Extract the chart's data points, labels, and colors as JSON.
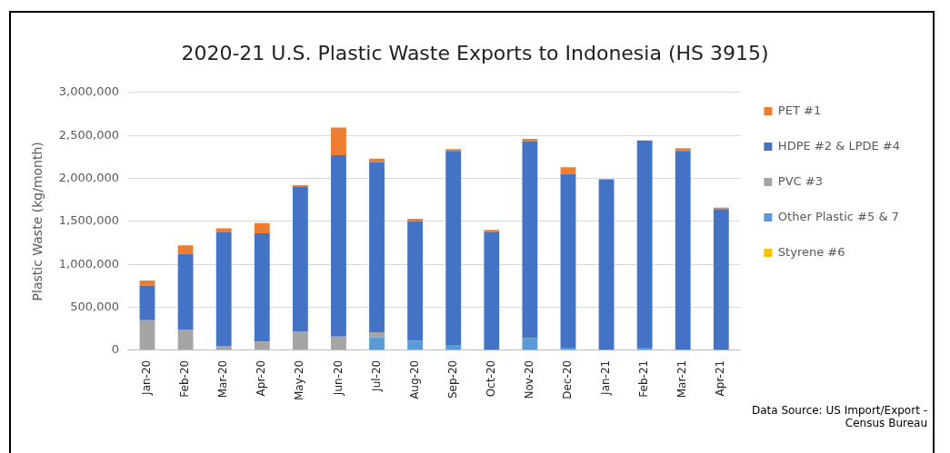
{
  "chart_data": {
    "type": "bar",
    "title": "2020-21 U.S. Plastic Waste Exports to Indonesia (HS 3915)",
    "ylabel": "Plastic Waste (kg/month)",
    "categories": [
      "Jan-20",
      "Feb-20",
      "Mar-20",
      "Apr-20",
      "May-20",
      "Jun-20",
      "Jul-20",
      "Aug-20",
      "Sep-20",
      "Oct-20",
      "Nov-20",
      "Dec-20",
      "Jan-21",
      "Feb-21",
      "Mar-21",
      "Apr-21"
    ],
    "stacked": true,
    "series": [
      {
        "name": "Styrene #6",
        "color": "#ffc000",
        "values": [
          0,
          0,
          0,
          0,
          0,
          0,
          0,
          0,
          0,
          0,
          0,
          0,
          0,
          0,
          0,
          0
        ]
      },
      {
        "name": "Other Plastic #5 & 7",
        "color": "#5b9bd5",
        "values": [
          0,
          0,
          0,
          0,
          0,
          0,
          150000,
          110000,
          60000,
          null,
          140000,
          30000,
          0,
          30000,
          0,
          0
        ]
      },
      {
        "name": "PVC #3",
        "color": "#a5a5a5",
        "values": [
          350000,
          240000,
          50000,
          100000,
          220000,
          160000,
          60000,
          0,
          0,
          0,
          0,
          0,
          0,
          0,
          0,
          0
        ]
      },
      {
        "name": "HDPE #2 & LPDE #4",
        "color": "#4472c4",
        "values": [
          400000,
          880000,
          1320000,
          1260000,
          1680000,
          2110000,
          1980000,
          1390000,
          2260000,
          1370000,
          2290000,
          2020000,
          1990000,
          2410000,
          2320000,
          1640000
        ]
      },
      {
        "name": "PET #1",
        "color": "#ed7d31",
        "values": [
          60000,
          100000,
          50000,
          120000,
          20000,
          320000,
          40000,
          30000,
          20000,
          30000,
          30000,
          80000,
          0,
          0,
          30000,
          20000
        ]
      }
    ],
    "ylim": [
      0,
      3000000
    ],
    "yticks": [
      0,
      {
        "value": 500000,
        "label": "500,000"
      },
      {
        "value": 1000000,
        "label": "1,000,000"
      },
      {
        "value": 1500000,
        "label": "1,500,000"
      },
      {
        "value": 2000000,
        "label": "2,000,000"
      },
      {
        "value": 2500000,
        "label": "2,500,000"
      },
      {
        "value": 3000000,
        "label": "3,000,000"
      }
    ],
    "grid": "y",
    "legend": "right",
    "annotations": [
      "Data Source: US Import/Export - Census Bureau"
    ]
  }
}
